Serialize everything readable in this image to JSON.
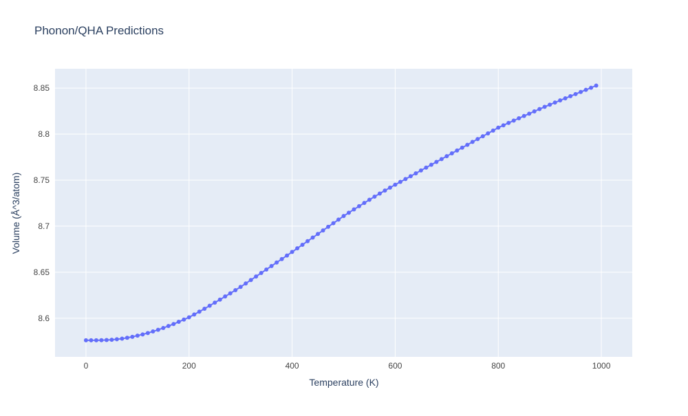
{
  "chart_data": {
    "type": "line",
    "title": "Phonon/QHA Predictions",
    "xlabel": "Temperature (K)",
    "ylabel": "Volume (Å^3/atom)",
    "x": [
      0,
      10,
      20,
      30,
      40,
      50,
      60,
      70,
      80,
      90,
      100,
      110,
      120,
      130,
      140,
      150,
      160,
      170,
      180,
      190,
      200,
      210,
      220,
      230,
      240,
      250,
      260,
      270,
      280,
      290,
      300,
      310,
      320,
      330,
      340,
      350,
      360,
      370,
      380,
      390,
      400,
      410,
      420,
      430,
      440,
      450,
      460,
      470,
      480,
      490,
      500,
      510,
      520,
      530,
      540,
      550,
      560,
      570,
      580,
      590,
      600,
      610,
      620,
      630,
      640,
      650,
      660,
      670,
      680,
      690,
      700,
      710,
      720,
      730,
      740,
      750,
      760,
      770,
      780,
      790,
      800,
      810,
      820,
      830,
      840,
      850,
      860,
      870,
      880,
      890,
      900,
      910,
      920,
      930,
      940,
      950,
      960,
      970,
      980,
      990
    ],
    "series": [
      {
        "name": "Volume",
        "color": "#636efa",
        "values": [
          8.576,
          8.576,
          8.576,
          8.5761,
          8.5763,
          8.5766,
          8.5771,
          8.5778,
          8.5787,
          8.5798,
          8.5811,
          8.5824,
          8.5839,
          8.5856,
          8.5874,
          8.5894,
          8.5915,
          8.5937,
          8.5961,
          8.5985,
          8.601,
          8.604,
          8.6071,
          8.6103,
          8.6136,
          8.6169,
          8.6202,
          8.6236,
          8.627,
          8.6305,
          8.634,
          8.6377,
          8.6415,
          8.6453,
          8.6491,
          8.6529,
          8.6567,
          8.6605,
          8.6643,
          8.6681,
          8.672,
          8.6759,
          8.6798,
          8.6837,
          8.6876,
          8.6915,
          8.6954,
          8.6993,
          8.7032,
          8.7071,
          8.711,
          8.7146,
          8.7182,
          8.7217,
          8.7252,
          8.7287,
          8.7321,
          8.7354,
          8.7387,
          8.7419,
          8.745,
          8.7481,
          8.7512,
          8.7543,
          8.7574,
          8.7605,
          8.7636,
          8.7667,
          8.7698,
          8.7729,
          8.776,
          8.7791,
          8.7822,
          8.7853,
          8.7884,
          8.7915,
          8.7946,
          8.7977,
          8.8008,
          8.8039,
          8.807,
          8.8096,
          8.8122,
          8.8147,
          8.8172,
          8.8197,
          8.8222,
          8.8247,
          8.8272,
          8.8296,
          8.832,
          8.8343,
          8.8366,
          8.8389,
          8.8412,
          8.8435,
          8.8458,
          8.8481,
          8.8504,
          8.8527
        ]
      }
    ],
    "xlim": [
      -60,
      1060
    ],
    "ylim": [
      8.558,
      8.871
    ],
    "xticks": [
      0,
      200,
      400,
      600,
      800,
      1000
    ],
    "yticks": [
      8.6,
      8.65,
      8.7,
      8.75,
      8.8,
      8.85
    ],
    "grid": true
  }
}
